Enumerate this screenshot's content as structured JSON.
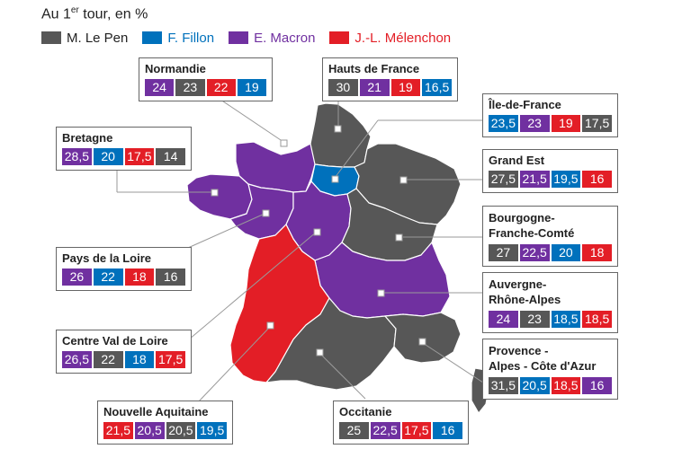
{
  "title": {
    "main": "Au 1",
    "sup": "er",
    "rest": " tour, en %"
  },
  "candidates": {
    "lepen": {
      "label": "M. Le Pen",
      "color": "#575757"
    },
    "fillon": {
      "label": "F. Fillon",
      "color": "#0071bc"
    },
    "macron": {
      "label": "E. Macron",
      "color": "#7030a0"
    },
    "melenchon": {
      "label": "J.-L. Mélenchon",
      "color": "#e31e26"
    }
  },
  "regions": [
    {
      "id": "normandie",
      "name": "Normandie",
      "results": [
        {
          "cand": "macron",
          "value": "24"
        },
        {
          "cand": "lepen",
          "value": "23"
        },
        {
          "cand": "melenchon",
          "value": "22"
        },
        {
          "cand": "fillon",
          "value": "19"
        }
      ]
    },
    {
      "id": "hauts-de-france",
      "name": "Hauts de France",
      "results": [
        {
          "cand": "lepen",
          "value": "30"
        },
        {
          "cand": "macron",
          "value": "21"
        },
        {
          "cand": "melenchon",
          "value": "19"
        },
        {
          "cand": "fillon",
          "value": "16,5"
        }
      ]
    },
    {
      "id": "ile-de-france",
      "name": "Île-de-France",
      "results": [
        {
          "cand": "fillon",
          "value": "23,5"
        },
        {
          "cand": "macron",
          "value": "23"
        },
        {
          "cand": "melenchon",
          "value": "19"
        },
        {
          "cand": "lepen",
          "value": "17,5"
        }
      ]
    },
    {
      "id": "bretagne",
      "name": "Bretagne",
      "results": [
        {
          "cand": "macron",
          "value": "28,5"
        },
        {
          "cand": "fillon",
          "value": "20"
        },
        {
          "cand": "melenchon",
          "value": "17,5"
        },
        {
          "cand": "lepen",
          "value": "14"
        }
      ]
    },
    {
      "id": "grand-est",
      "name": "Grand Est",
      "results": [
        {
          "cand": "lepen",
          "value": "27,5"
        },
        {
          "cand": "macron",
          "value": "21,5"
        },
        {
          "cand": "fillon",
          "value": "19,5"
        },
        {
          "cand": "melenchon",
          "value": "16"
        }
      ]
    },
    {
      "id": "bourgogne",
      "name": "Bourgogne-\nFranche-Comté",
      "results": [
        {
          "cand": "lepen",
          "value": "27"
        },
        {
          "cand": "macron",
          "value": "22,5"
        },
        {
          "cand": "fillon",
          "value": "20"
        },
        {
          "cand": "melenchon",
          "value": "18"
        }
      ]
    },
    {
      "id": "pays-de-la-loire",
      "name": "Pays de la Loire",
      "results": [
        {
          "cand": "macron",
          "value": "26"
        },
        {
          "cand": "fillon",
          "value": "22"
        },
        {
          "cand": "melenchon",
          "value": "18"
        },
        {
          "cand": "lepen",
          "value": "16"
        }
      ]
    },
    {
      "id": "auvergne",
      "name": "Auvergne-\nRhône-Alpes",
      "results": [
        {
          "cand": "macron",
          "value": "24"
        },
        {
          "cand": "lepen",
          "value": "23"
        },
        {
          "cand": "fillon",
          "value": "18,5"
        },
        {
          "cand": "melenchon",
          "value": "18,5"
        }
      ]
    },
    {
      "id": "centre-val-de-loire",
      "name": "Centre Val de Loire",
      "results": [
        {
          "cand": "macron",
          "value": "26,5"
        },
        {
          "cand": "lepen",
          "value": "22"
        },
        {
          "cand": "fillon",
          "value": "18"
        },
        {
          "cand": "melenchon",
          "value": "17,5"
        }
      ]
    },
    {
      "id": "paca",
      "name": "Provence -\nAlpes - Côte d'Azur",
      "results": [
        {
          "cand": "lepen",
          "value": "31,5"
        },
        {
          "cand": "fillon",
          "value": "20,5"
        },
        {
          "cand": "melenchon",
          "value": "18,5"
        },
        {
          "cand": "macron",
          "value": "16"
        }
      ]
    },
    {
      "id": "nouvelle-aquitaine",
      "name": "Nouvelle Aquitaine",
      "results": [
        {
          "cand": "melenchon",
          "value": "21,5"
        },
        {
          "cand": "macron",
          "value": "20,5"
        },
        {
          "cand": "lepen",
          "value": "20,5"
        },
        {
          "cand": "fillon",
          "value": "19,5"
        }
      ]
    },
    {
      "id": "occitanie",
      "name": "Occitanie",
      "results": [
        {
          "cand": "lepen",
          "value": "25"
        },
        {
          "cand": "macron",
          "value": "22,5"
        },
        {
          "cand": "melenchon",
          "value": "17,5"
        },
        {
          "cand": "fillon",
          "value": "16"
        }
      ]
    }
  ]
}
